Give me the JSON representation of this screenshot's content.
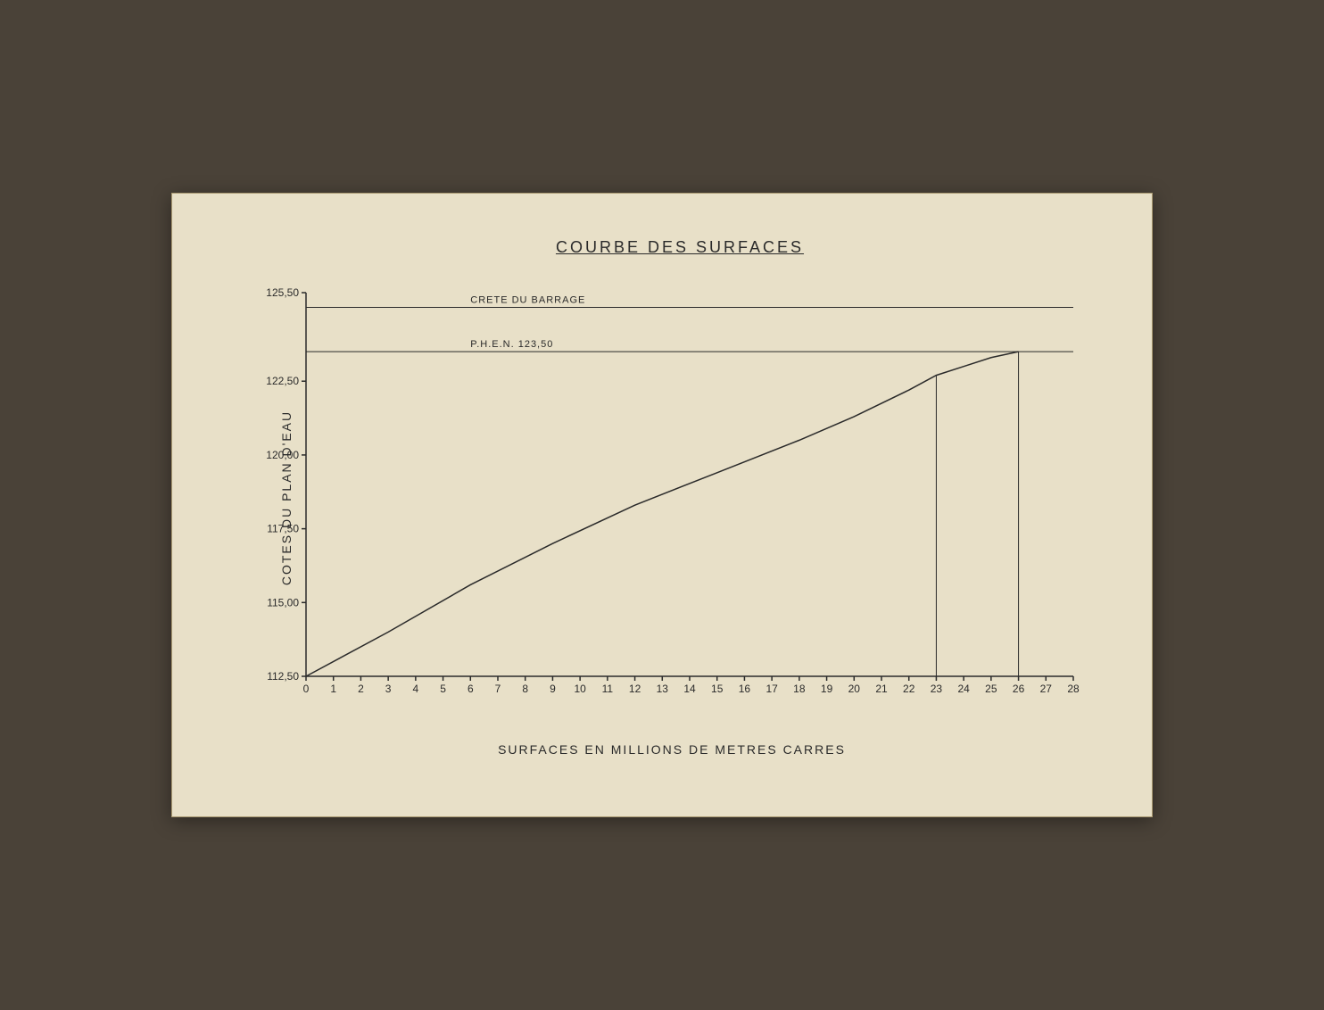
{
  "chart": {
    "type": "line",
    "title": "COURBE DES SURFACES",
    "y_axis_label": "COTES DU PLAN D'EAU",
    "x_axis_label": "SURFACES EN MILLIONS DE METRES CARRES",
    "background_color": "#e8e0c8",
    "line_color": "#2a2a2a",
    "text_color": "#2a2a2a",
    "title_fontsize": 18,
    "label_fontsize": 14,
    "tick_fontsize": 12,
    "annotation_fontsize": 11,
    "line_width": 1.5,
    "xlim": [
      0,
      28
    ],
    "ylim": [
      112.5,
      125.5
    ],
    "x_ticks": [
      0,
      1,
      2,
      3,
      4,
      5,
      6,
      7,
      8,
      9,
      10,
      11,
      12,
      13,
      14,
      15,
      16,
      17,
      18,
      19,
      20,
      21,
      22,
      23,
      24,
      25,
      26,
      27,
      28
    ],
    "y_ticks": [
      112.5,
      115.0,
      117.5,
      120.0,
      122.5,
      125.5
    ],
    "y_tick_labels": [
      "112,50",
      "115,00",
      "117,50",
      "120,00",
      "122,50",
      "125,50"
    ],
    "curve_points": [
      {
        "x": 0,
        "y": 112.5
      },
      {
        "x": 3,
        "y": 114.0
      },
      {
        "x": 6,
        "y": 115.6
      },
      {
        "x": 9,
        "y": 117.0
      },
      {
        "x": 12,
        "y": 118.3
      },
      {
        "x": 15,
        "y": 119.4
      },
      {
        "x": 18,
        "y": 120.5
      },
      {
        "x": 20,
        "y": 121.3
      },
      {
        "x": 22,
        "y": 122.2
      },
      {
        "x": 23,
        "y": 122.7
      },
      {
        "x": 24,
        "y": 123.0
      },
      {
        "x": 25,
        "y": 123.3
      },
      {
        "x": 26,
        "y": 123.5
      }
    ],
    "reference_lines": [
      {
        "label": "CRETE DU BARRAGE",
        "y": 125.0
      },
      {
        "label": "P.H.E.N. 123,50",
        "y": 123.5
      }
    ],
    "drop_lines_x": [
      23,
      26
    ]
  }
}
